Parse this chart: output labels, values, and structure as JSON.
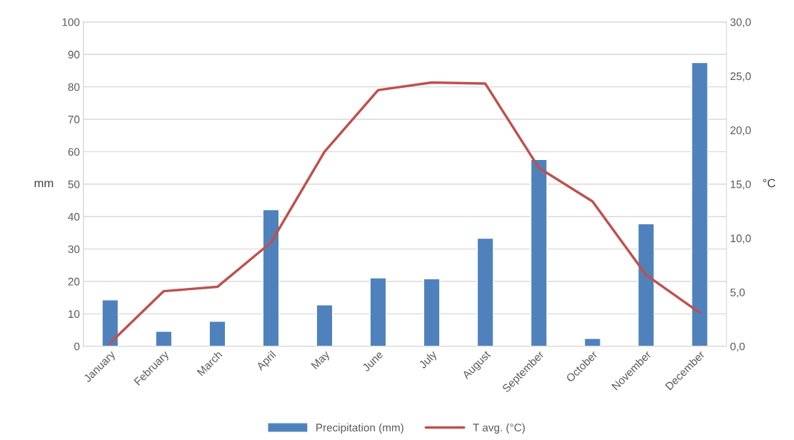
{
  "chart_data": {
    "type": "bar",
    "categories": [
      "January",
      "February",
      "March",
      "April",
      "May",
      "June",
      "July",
      "August",
      "September",
      "October",
      "November",
      "December"
    ],
    "series": [
      {
        "name": "Precipitation (mm)",
        "type": "bar",
        "color": "#4f81bd",
        "values": [
          14.3,
          4.6,
          7.7,
          42.1,
          12.8,
          21.1,
          20.8,
          33.3,
          57.6,
          2.4,
          37.8,
          87.5
        ]
      },
      {
        "name": "T avg. (°C)",
        "type": "line",
        "axis": "y2",
        "color": "#c0504d",
        "values": [
          0.3,
          5.1,
          5.5,
          9.6,
          18.0,
          23.7,
          24.4,
          24.3,
          16.5,
          13.4,
          6.6,
          3.1
        ]
      }
    ],
    "ylabel": "mm",
    "y2label": "°C",
    "ylim": [
      0,
      100
    ],
    "yticks": [
      0,
      10,
      20,
      30,
      40,
      50,
      60,
      70,
      80,
      90,
      100
    ],
    "y2lim": [
      0,
      30
    ],
    "y2ticks": [
      {
        "value": 0,
        "label": "0,0"
      },
      {
        "value": 5,
        "label": "5,0"
      },
      {
        "value": 10,
        "label": "10,0"
      },
      {
        "value": 15,
        "label": "15,0"
      },
      {
        "value": 20,
        "label": "20,0"
      },
      {
        "value": 25,
        "label": "25,0"
      },
      {
        "value": 30,
        "label": "30,0"
      }
    ],
    "grid": "y",
    "legend": "bottom",
    "marker": "none",
    "line_style": "solid"
  }
}
